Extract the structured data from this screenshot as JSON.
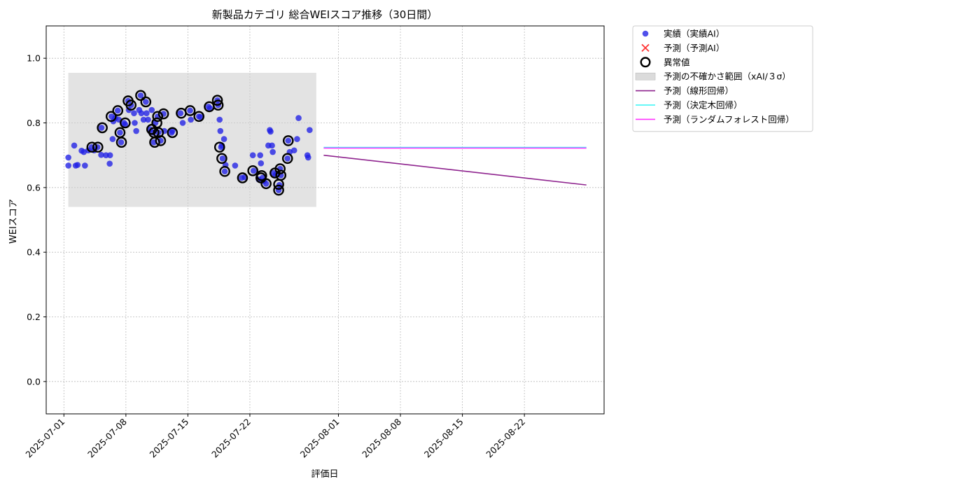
{
  "chart_data": {
    "type": "scatter",
    "title": "新製品カテゴリ 総合WEIスコア推移（30日間）",
    "xlabel": "評価日",
    "ylabel": "WEIスコア",
    "x_type": "date",
    "xlim": [
      "2025-06-29",
      "2025-08-31"
    ],
    "ylim": [
      -0.1,
      1.1
    ],
    "x_ticks": [
      "2025-07-01",
      "2025-07-08",
      "2025-07-15",
      "2025-07-22",
      "2025-08-01",
      "2025-08-08",
      "2025-08-15",
      "2025-08-22"
    ],
    "y_ticks": [
      0.0,
      0.2,
      0.4,
      0.6,
      0.8,
      1.0
    ],
    "y_tick_labels": [
      "0.0",
      "0.2",
      "0.4",
      "0.6",
      "0.8",
      "1.0"
    ],
    "grid": true,
    "legend_position": "outside upper right",
    "colors": {
      "actual": "#1f1fe6",
      "forecast_marker": "#ff3333",
      "anomaly": "#000000",
      "band": "#cccccc",
      "linear": "#8e238e",
      "tree": "#33f5f5",
      "forest": "#ff33ff"
    },
    "legend": [
      {
        "key": "actual",
        "label": "実績（実績AI）",
        "kind": "dot"
      },
      {
        "key": "forecast",
        "label": "予測（予測AI）",
        "kind": "cross"
      },
      {
        "key": "anomaly",
        "label": "異常値",
        "kind": "ring"
      },
      {
        "key": "band",
        "label": "予測の不確かさ範囲（xAI/３σ）",
        "kind": "patch"
      },
      {
        "key": "linear",
        "label": "予測（線形回帰）",
        "kind": "line"
      },
      {
        "key": "tree",
        "label": "予測（決定木回帰）",
        "kind": "line"
      },
      {
        "key": "forest",
        "label": "予測（ランダムフォレスト回帰）",
        "kind": "line"
      }
    ],
    "uncertainty_band": {
      "x": [
        "2025-07-01 12:00",
        "2025-07-29 12:00"
      ],
      "y": [
        0.54,
        0.955
      ]
    },
    "actual": [
      [
        "2025-07-01 12:00",
        0.693
      ],
      [
        "2025-07-01 12:00",
        0.668
      ],
      [
        "2025-07-02 04:00",
        0.73
      ],
      [
        "2025-07-02 08:00",
        0.668
      ],
      [
        "2025-07-02 13:00",
        0.67
      ],
      [
        "2025-07-03 00:00",
        0.714
      ],
      [
        "2025-07-03 06:00",
        0.71
      ],
      [
        "2025-07-03 09:00",
        0.668
      ],
      [
        "2025-07-03 18:00",
        0.715
      ],
      [
        "2025-07-04 03:00",
        0.725
      ],
      [
        "2025-07-04 10:00",
        0.715
      ],
      [
        "2025-07-04 19:00",
        0.725
      ],
      [
        "2025-07-05 05:00",
        0.701
      ],
      [
        "2025-07-05 06:00",
        0.785
      ],
      [
        "2025-07-05 18:00",
        0.7
      ],
      [
        "2025-07-06 04:00",
        0.674
      ],
      [
        "2025-07-06 05:00",
        0.7
      ],
      [
        "2025-07-06 09:00",
        0.82
      ],
      [
        "2025-07-06 12:00",
        0.75
      ],
      [
        "2025-07-06 14:00",
        0.805
      ],
      [
        "2025-07-06 19:00",
        0.815
      ],
      [
        "2025-07-07 02:00",
        0.838
      ],
      [
        "2025-07-07 05:00",
        0.81
      ],
      [
        "2025-07-07 08:00",
        0.77
      ],
      [
        "2025-07-07 11:00",
        0.74
      ],
      [
        "2025-07-07 19:00",
        0.8
      ],
      [
        "2025-07-07 22:00",
        0.795
      ],
      [
        "2025-07-08 06:00",
        0.868
      ],
      [
        "2025-07-08 08:00",
        0.84
      ],
      [
        "2025-07-08 14:00",
        0.855
      ],
      [
        "2025-07-08 22:00",
        0.83
      ],
      [
        "2025-07-09 00:00",
        0.8
      ],
      [
        "2025-07-09 04:00",
        0.775
      ],
      [
        "2025-07-09 12:00",
        0.84
      ],
      [
        "2025-07-09 16:00",
        0.885
      ],
      [
        "2025-07-09 18:00",
        0.83
      ],
      [
        "2025-07-10 00:00",
        0.81
      ],
      [
        "2025-07-10 06:00",
        0.865
      ],
      [
        "2025-07-10 08:00",
        0.83
      ],
      [
        "2025-07-10 12:00",
        0.81
      ],
      [
        "2025-07-10 18:00",
        0.78
      ],
      [
        "2025-07-10 22:00",
        0.84
      ],
      [
        "2025-07-11 02:00",
        0.77
      ],
      [
        "2025-07-11 04:00",
        0.74
      ],
      [
        "2025-07-11 08:00",
        0.8
      ],
      [
        "2025-07-11 14:00",
        0.82
      ],
      [
        "2025-07-11 16:00",
        0.77
      ],
      [
        "2025-07-11 22:00",
        0.745
      ],
      [
        "2025-07-12 06:00",
        0.828
      ],
      [
        "2025-07-12 08:00",
        0.775
      ],
      [
        "2025-07-13 04:00",
        0.77
      ],
      [
        "2025-07-13 06:00",
        0.775
      ],
      [
        "2025-07-14 04:00",
        0.83
      ],
      [
        "2025-07-14 10:00",
        0.8
      ],
      [
        "2025-07-15 06:00",
        0.838
      ],
      [
        "2025-07-15 08:00",
        0.81
      ],
      [
        "2025-07-16 06:00",
        0.82
      ],
      [
        "2025-07-16 10:00",
        0.818
      ],
      [
        "2025-07-17 08:00",
        0.85
      ],
      [
        "2025-07-17 12:00",
        0.845
      ],
      [
        "2025-07-18 08:00",
        0.87
      ],
      [
        "2025-07-18 10:00",
        0.855
      ],
      [
        "2025-07-18 14:00",
        0.81
      ],
      [
        "2025-07-18 16:00",
        0.775
      ],
      [
        "2025-07-18 18:00",
        0.725
      ],
      [
        "2025-07-18 20:00",
        0.73
      ],
      [
        "2025-07-18 22:00",
        0.69
      ],
      [
        "2025-07-19 02:00",
        0.75
      ],
      [
        "2025-07-19 04:00",
        0.65
      ],
      [
        "2025-07-19 06:00",
        0.67
      ],
      [
        "2025-07-20 08:00",
        0.668
      ],
      [
        "2025-07-21 02:00",
        0.63
      ],
      [
        "2025-07-21 10:00",
        0.632
      ],
      [
        "2025-07-22 08:00",
        0.7
      ],
      [
        "2025-07-22 10:00",
        0.652
      ],
      [
        "2025-07-23 00:00",
        0.625
      ],
      [
        "2025-07-23 04:00",
        0.7
      ],
      [
        "2025-07-23 06:00",
        0.675
      ],
      [
        "2025-07-23 10:00",
        0.63
      ],
      [
        "2025-07-23 14:00",
        0.62
      ],
      [
        "2025-07-23 20:00",
        0.612
      ],
      [
        "2025-07-24 02:00",
        0.73
      ],
      [
        "2025-07-24 06:00",
        0.778
      ],
      [
        "2025-07-24 08:00",
        0.773
      ],
      [
        "2025-07-24 12:00",
        0.73
      ],
      [
        "2025-07-24 14:00",
        0.71
      ],
      [
        "2025-07-24 16:00",
        0.645
      ],
      [
        "2025-07-24 22:00",
        0.64
      ],
      [
        "2025-07-25 06:00",
        0.592
      ],
      [
        "2025-07-25 08:00",
        0.608
      ],
      [
        "2025-07-25 10:00",
        0.658
      ],
      [
        "2025-07-25 12:00",
        0.638
      ],
      [
        "2025-07-26 06:00",
        0.69
      ],
      [
        "2025-07-26 08:00",
        0.745
      ],
      [
        "2025-07-26 12:00",
        0.71
      ],
      [
        "2025-07-27 00:00",
        0.715
      ],
      [
        "2025-07-27 08:00",
        0.75
      ],
      [
        "2025-07-27 12:00",
        0.815
      ],
      [
        "2025-07-28 12:00",
        0.7
      ],
      [
        "2025-07-28 14:00",
        0.693
      ],
      [
        "2025-07-28 18:00",
        0.778
      ]
    ],
    "anomalies": [
      [
        "2025-07-04 04:00",
        0.725
      ],
      [
        "2025-07-04 20:00",
        0.725
      ],
      [
        "2025-07-05 08:00",
        0.785
      ],
      [
        "2025-07-06 08:00",
        0.82
      ],
      [
        "2025-07-07 02:00",
        0.838
      ],
      [
        "2025-07-07 08:00",
        0.77
      ],
      [
        "2025-07-07 12:00",
        0.74
      ],
      [
        "2025-07-07 22:00",
        0.8
      ],
      [
        "2025-07-08 06:00",
        0.868
      ],
      [
        "2025-07-08 14:00",
        0.855
      ],
      [
        "2025-07-09 16:00",
        0.885
      ],
      [
        "2025-07-10 06:00",
        0.865
      ],
      [
        "2025-07-10 22:00",
        0.78
      ],
      [
        "2025-07-11 04:00",
        0.77
      ],
      [
        "2025-07-11 06:00",
        0.74
      ],
      [
        "2025-07-11 12:00",
        0.8
      ],
      [
        "2025-07-11 14:00",
        0.82
      ],
      [
        "2025-07-11 16:00",
        0.77
      ],
      [
        "2025-07-11 22:00",
        0.745
      ],
      [
        "2025-07-12 06:00",
        0.828
      ],
      [
        "2025-07-13 06:00",
        0.77
      ],
      [
        "2025-07-14 06:00",
        0.83
      ],
      [
        "2025-07-15 06:00",
        0.838
      ],
      [
        "2025-07-16 06:00",
        0.82
      ],
      [
        "2025-07-17 10:00",
        0.85
      ],
      [
        "2025-07-18 08:00",
        0.87
      ],
      [
        "2025-07-18 10:00",
        0.855
      ],
      [
        "2025-07-18 14:00",
        0.725
      ],
      [
        "2025-07-18 20:00",
        0.69
      ],
      [
        "2025-07-19 04:00",
        0.65
      ],
      [
        "2025-07-21 04:00",
        0.63
      ],
      [
        "2025-07-22 08:00",
        0.652
      ],
      [
        "2025-07-23 06:00",
        0.63
      ],
      [
        "2025-07-23 08:00",
        0.637
      ],
      [
        "2025-07-23 20:00",
        0.612
      ],
      [
        "2025-07-24 20:00",
        0.645
      ],
      [
        "2025-07-25 06:00",
        0.592
      ],
      [
        "2025-07-25 06:00",
        0.61
      ],
      [
        "2025-07-25 10:00",
        0.658
      ],
      [
        "2025-07-25 12:00",
        0.638
      ],
      [
        "2025-07-26 06:00",
        0.69
      ],
      [
        "2025-07-26 08:00",
        0.745
      ]
    ],
    "forecast_lines": [
      {
        "key": "linear",
        "x": [
          "2025-07-30 08:00",
          "2025-08-29 00:00"
        ],
        "y": [
          0.7,
          0.608
        ]
      },
      {
        "key": "tree",
        "x": [
          "2025-07-30 08:00",
          "2025-08-29 00:00"
        ],
        "y": [
          0.724,
          0.724
        ]
      },
      {
        "key": "forest",
        "x": [
          "2025-07-30 08:00",
          "2025-08-29 00:00"
        ],
        "y": [
          0.722,
          0.722
        ]
      }
    ]
  }
}
